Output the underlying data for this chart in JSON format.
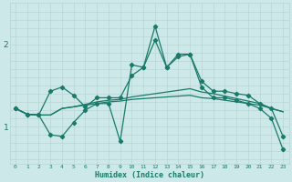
{
  "title": "",
  "xlabel": "Humidex (Indice chaleur)",
  "bg_color": "#cce8e8",
  "line_color": "#1a7a6a",
  "grid_color": "#b8d4d4",
  "xlim": [
    -0.5,
    23.5
  ],
  "ylim": [
    0.55,
    2.5
  ],
  "yticks": [
    1,
    2
  ],
  "xticks": [
    0,
    1,
    2,
    3,
    4,
    5,
    6,
    7,
    8,
    9,
    10,
    11,
    12,
    13,
    14,
    15,
    16,
    17,
    18,
    19,
    20,
    21,
    22,
    23
  ],
  "series": [
    {
      "x": [
        0,
        1,
        2,
        3,
        4,
        5,
        6,
        7,
        8,
        9,
        10,
        11,
        12,
        13,
        14,
        15,
        16,
        17,
        18,
        19,
        20,
        21,
        22,
        23
      ],
      "y": [
        1.22,
        1.15,
        1.14,
        1.14,
        1.22,
        1.24,
        1.26,
        1.28,
        1.3,
        1.31,
        1.33,
        1.34,
        1.35,
        1.36,
        1.37,
        1.38,
        1.35,
        1.34,
        1.32,
        1.3,
        1.28,
        1.26,
        1.22,
        1.18
      ],
      "marker": false
    },
    {
      "x": [
        0,
        1,
        2,
        3,
        4,
        5,
        6,
        7,
        8,
        9,
        10,
        11,
        12,
        13,
        14,
        15,
        16,
        17,
        18,
        19,
        20,
        21,
        22,
        23
      ],
      "y": [
        1.22,
        1.15,
        1.14,
        1.14,
        1.22,
        1.24,
        1.27,
        1.3,
        1.32,
        1.33,
        1.36,
        1.38,
        1.4,
        1.42,
        1.44,
        1.46,
        1.42,
        1.4,
        1.37,
        1.34,
        1.31,
        1.28,
        1.22,
        1.18
      ],
      "marker": false
    },
    {
      "x": [
        0,
        1,
        2,
        3,
        4,
        5,
        6,
        7,
        8,
        9,
        10,
        11,
        12,
        13,
        14,
        15,
        16,
        17,
        18,
        19,
        20,
        21,
        22,
        23
      ],
      "y": [
        1.22,
        1.15,
        1.14,
        1.43,
        1.48,
        1.38,
        1.24,
        1.35,
        1.35,
        1.35,
        1.62,
        1.72,
        2.05,
        1.72,
        1.85,
        1.88,
        1.55,
        1.43,
        1.43,
        1.4,
        1.38,
        1.28,
        1.22,
        0.88
      ],
      "marker": true
    },
    {
      "x": [
        0,
        1,
        2,
        3,
        4,
        5,
        6,
        7,
        8,
        9,
        10,
        11,
        12,
        13,
        14,
        15,
        16,
        17,
        18,
        19,
        20,
        21,
        22,
        23
      ],
      "y": [
        1.22,
        1.15,
        1.14,
        0.9,
        0.88,
        1.05,
        1.2,
        1.28,
        1.28,
        0.82,
        1.75,
        1.72,
        2.22,
        1.72,
        1.88,
        1.88,
        1.48,
        1.35,
        1.35,
        1.32,
        1.28,
        1.22,
        1.1,
        0.72
      ],
      "marker": true
    }
  ]
}
